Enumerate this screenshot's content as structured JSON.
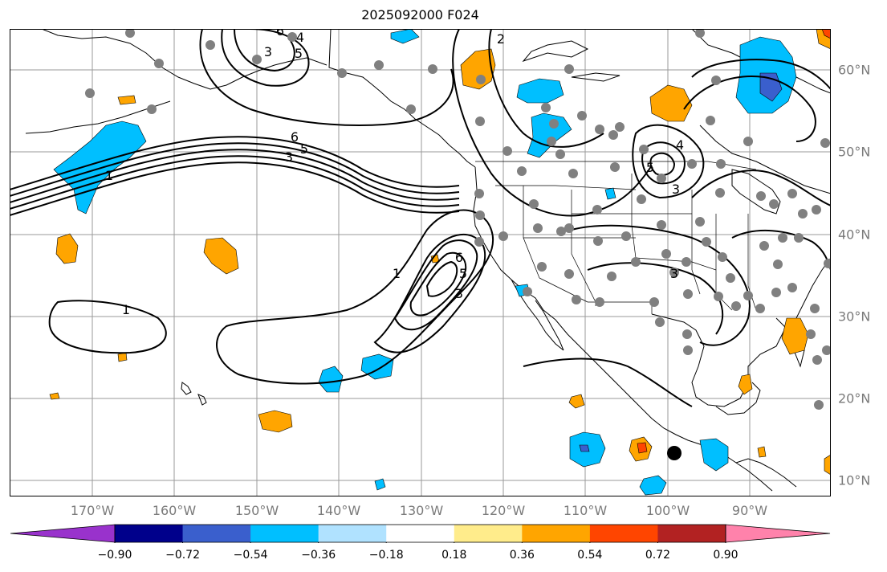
{
  "title": "2025092000 F024",
  "lon_labels": [
    "170°W",
    "160°W",
    "150°W",
    "140°W",
    "130°W",
    "120°W",
    "110°W",
    "100°W",
    "90°W"
  ],
  "lat_labels": [
    "60°N",
    "50°N",
    "40°N",
    "30°N",
    "20°N",
    "10°N"
  ],
  "colorbar": {
    "tick_labels": [
      "−0.90",
      "−0.72",
      "−0.54",
      "−0.36",
      "−0.18",
      "0.18",
      "0.36",
      "0.54",
      "0.72",
      "0.90"
    ],
    "colors": [
      "#9932cc",
      "#00008b",
      "#3a5fcd",
      "#00bfff",
      "#b0e2ff",
      "#ffffff",
      "#ffec8b",
      "#ffa500",
      "#ff4500",
      "#b22222",
      "#ff82ab"
    ]
  },
  "contour_labels": [
    "6",
    "3",
    "5",
    "4",
    "2",
    "6",
    "5",
    "3",
    "1",
    "4",
    "5",
    "3",
    "3",
    "6",
    "5",
    "3",
    "1",
    "1"
  ],
  "map_extent": {
    "lon_min": -180,
    "lon_max": -80,
    "lat_min": 8,
    "lat_max": 65
  }
}
